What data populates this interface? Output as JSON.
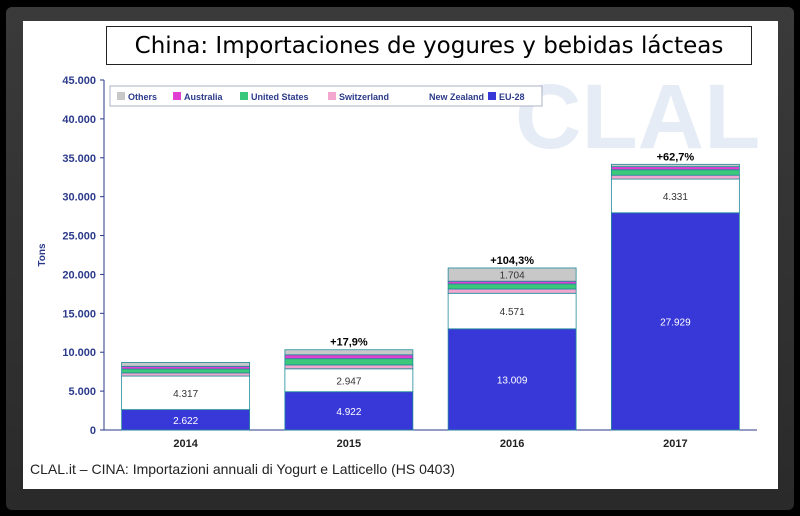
{
  "title": "China: Importaciones de yogures y bebidas lácteas",
  "caption": "CLAL.it – CINA: Importazioni annuali di Yogurt e Latticello (HS 0403)",
  "watermark": "CLAL",
  "chart_data": {
    "type": "bar",
    "stacked": true,
    "ylabel": "Tons",
    "ylim": [
      0,
      45000
    ],
    "yticks": [
      0,
      5000,
      10000,
      15000,
      20000,
      25000,
      30000,
      35000,
      40000,
      45000
    ],
    "ytick_labels": [
      "0",
      "5.000",
      "10.000",
      "15.000",
      "20.000",
      "25.000",
      "30.000",
      "35.000",
      "40.000",
      "45.000"
    ],
    "grid": false,
    "legend_position": "top",
    "categories": [
      "2014",
      "2015",
      "2016",
      "2017"
    ],
    "series": [
      {
        "name": "EU-28",
        "color": "#3838d8",
        "values": [
          2622,
          4922,
          13009,
          27929
        ],
        "labels": [
          "2.622",
          "4.922",
          "13.009",
          "27.929"
        ]
      },
      {
        "name": "New Zealand",
        "color": "#ffffff",
        "values": [
          4317,
          2947,
          4571,
          4331
        ],
        "labels": [
          "4.317",
          "2.947",
          "4.571",
          "4.331"
        ]
      },
      {
        "name": "Switzerland",
        "color": "#f2a7cf",
        "values": [
          400,
          500,
          550,
          500
        ],
        "labels": [
          "",
          "",
          "",
          ""
        ]
      },
      {
        "name": "United States",
        "color": "#3cc87a",
        "values": [
          500,
          800,
          650,
          700
        ],
        "labels": [
          "",
          "",
          "",
          ""
        ]
      },
      {
        "name": "Australia",
        "color": "#e040d0",
        "values": [
          350,
          500,
          350,
          400
        ],
        "labels": [
          "",
          "",
          "",
          ""
        ]
      },
      {
        "name": "Others",
        "color": "#c8c8c8",
        "values": [
          500,
          650,
          1704,
          300
        ],
        "labels": [
          "",
          "",
          "1.704",
          ""
        ]
      }
    ],
    "legend_order": [
      "Others",
      "Australia",
      "United States",
      "Switzerland",
      "New Zealand",
      "EU-28"
    ],
    "annotations": [
      "",
      "+17,9%",
      "+104,3%",
      "+62,7%"
    ]
  }
}
